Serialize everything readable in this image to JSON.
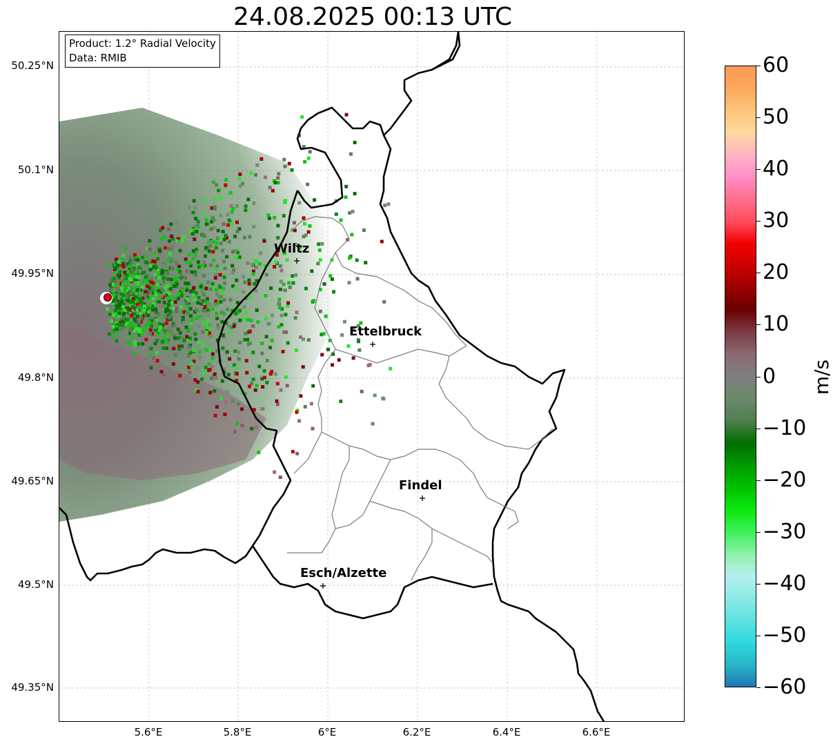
{
  "title": "24.08.2025 00:13 UTC",
  "info": {
    "product": "Product: 1.2° Radial Velocity",
    "data": "Data: RMIB"
  },
  "axes": {
    "y_ticks": [
      "50.25°N",
      "50.1°N",
      "49.95°N",
      "49.8°N",
      "49.65°N",
      "49.5°N",
      "49.35°N"
    ],
    "x_ticks": [
      "5.6°E",
      "5.8°E",
      "6°E",
      "6.2°E",
      "6.4°E",
      "6.6°E"
    ]
  },
  "cities": [
    {
      "name": "Wiltz",
      "lon": 5.93,
      "lat": 49.97
    },
    {
      "name": "Ettelbruck",
      "lon": 6.1,
      "lat": 49.85
    },
    {
      "name": "Findel",
      "lon": 6.21,
      "lat": 49.63
    },
    {
      "name": "Esch/Alzette",
      "lon": 5.99,
      "lat": 49.5
    }
  ],
  "radar_site": {
    "lon": 5.505,
    "lat": 49.915,
    "color": "#e8000b"
  },
  "colorbar": {
    "label": "m/s",
    "ticks": [
      "60",
      "50",
      "40",
      "30",
      "20",
      "10",
      "0",
      "−10",
      "−20",
      "−30",
      "−40",
      "−50",
      "−60"
    ],
    "min": -60,
    "max": 60,
    "stops": [
      "#1f78b4",
      "#29b6c9",
      "#2ed9dc",
      "#5de3e0",
      "#8ceae6",
      "#b5f0ee",
      "#8df0a8",
      "#3cf05a",
      "#0be80b",
      "#00c000",
      "#009a00",
      "#006d00",
      "#4f7f4f",
      "#6a8a6a",
      "#7f7f7f",
      "#8b6a72",
      "#7a3b44",
      "#6a0000",
      "#9a0000",
      "#cc0000",
      "#f20000",
      "#ff4d5e",
      "#ff6f8a",
      "#ff8fc8",
      "#ffb3c2",
      "#fddaa0",
      "#fdc47a",
      "#fca95a",
      "#fd9a55"
    ]
  }
}
